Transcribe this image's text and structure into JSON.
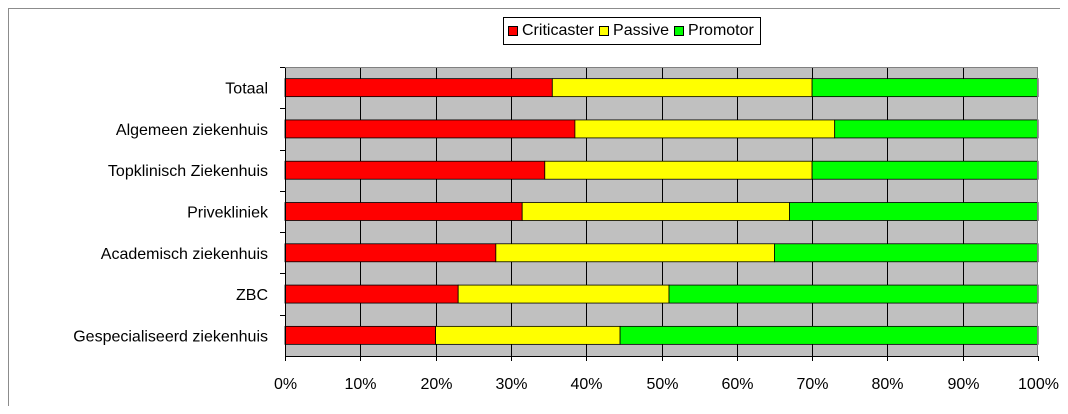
{
  "chart_data": {
    "type": "bar",
    "orientation": "horizontal",
    "stacked": "percent",
    "categories": [
      "Totaal",
      "Algemeen ziekenhuis",
      "Topklinisch Ziekenhuis",
      "Privekliniek",
      "Academisch ziekenhuis",
      "ZBC",
      "Gespecialiseerd ziekenhuis"
    ],
    "series": [
      {
        "name": "Criticaster",
        "color": "#ff0000",
        "values": [
          35.5,
          38.5,
          34.5,
          31.5,
          28,
          23,
          20
        ]
      },
      {
        "name": "Passive",
        "color": "#ffff00",
        "values": [
          34.5,
          34.5,
          35.5,
          35.5,
          37,
          28,
          24.5
        ]
      },
      {
        "name": "Promotor",
        "color": "#00ff00",
        "values": [
          30,
          27,
          30,
          33,
          35,
          49,
          55.5
        ]
      }
    ],
    "x_ticks": [
      "0%",
      "10%",
      "20%",
      "30%",
      "40%",
      "50%",
      "60%",
      "70%",
      "80%",
      "90%",
      "100%"
    ],
    "xlim": [
      0,
      100
    ],
    "grid": true,
    "plot_background": "#c0c0c0",
    "legend_position": "top",
    "title": "",
    "xlabel": "",
    "ylabel": ""
  }
}
